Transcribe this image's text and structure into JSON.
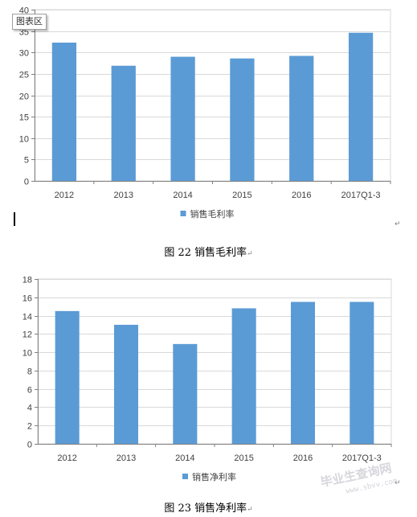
{
  "chart_data": [
    {
      "type": "bar",
      "categories": [
        "2012",
        "2013",
        "2014",
        "2015",
        "2016",
        "2017Q1-3"
      ],
      "series": [
        {
          "name": "销售毛利率",
          "values": [
            32.3,
            26.9,
            29.0,
            28.6,
            29.2,
            34.6
          ]
        }
      ],
      "ylim": [
        0,
        40
      ],
      "yticks": [
        0,
        5,
        10,
        15,
        20,
        25,
        30,
        35,
        40
      ],
      "grid": true,
      "legend": "bottom",
      "color": "#5b9bd5"
    },
    {
      "type": "bar",
      "categories": [
        "2012",
        "2013",
        "2014",
        "2015",
        "2016",
        "2017Q1-3"
      ],
      "series": [
        {
          "name": "销售净利率",
          "values": [
            14.5,
            13.0,
            10.9,
            14.8,
            15.5,
            15.5
          ]
        }
      ],
      "ylim": [
        0,
        18
      ],
      "yticks": [
        0,
        2,
        4,
        6,
        8,
        10,
        12,
        14,
        16,
        18
      ],
      "grid": true,
      "legend": "bottom",
      "color": "#5b9bd5"
    }
  ],
  "captions": [
    "图 22  销售毛利率",
    "图 23  销售净利率"
  ],
  "tooltip": "图表区",
  "paragraph_mark": "↵",
  "watermark": {
    "text": "毕业生查询网",
    "sub": "www.sbvv.com"
  }
}
